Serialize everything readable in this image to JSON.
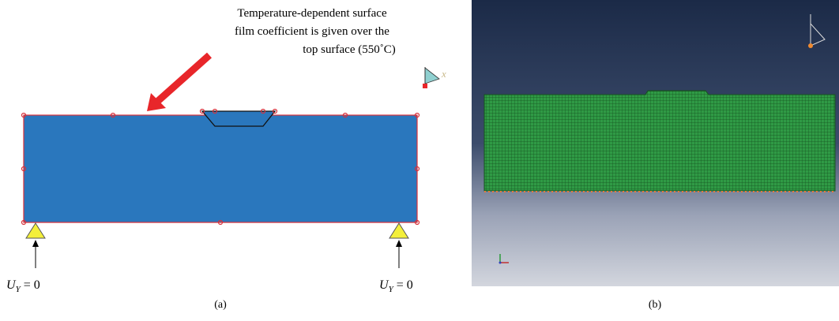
{
  "panel_a": {
    "annotation": [
      "Temperature-dependent surface",
      "film coefficient is given over the",
      "top surface (550˚C)"
    ],
    "triad_label": "x",
    "supports": [
      {
        "symbol": "U",
        "subscript": "Y",
        "rhs": "= 0"
      },
      {
        "symbol": "U",
        "subscript": "Y",
        "rhs": "= 0"
      }
    ],
    "caption": "(a)"
  },
  "panel_b": {
    "caption": "(b)"
  }
}
